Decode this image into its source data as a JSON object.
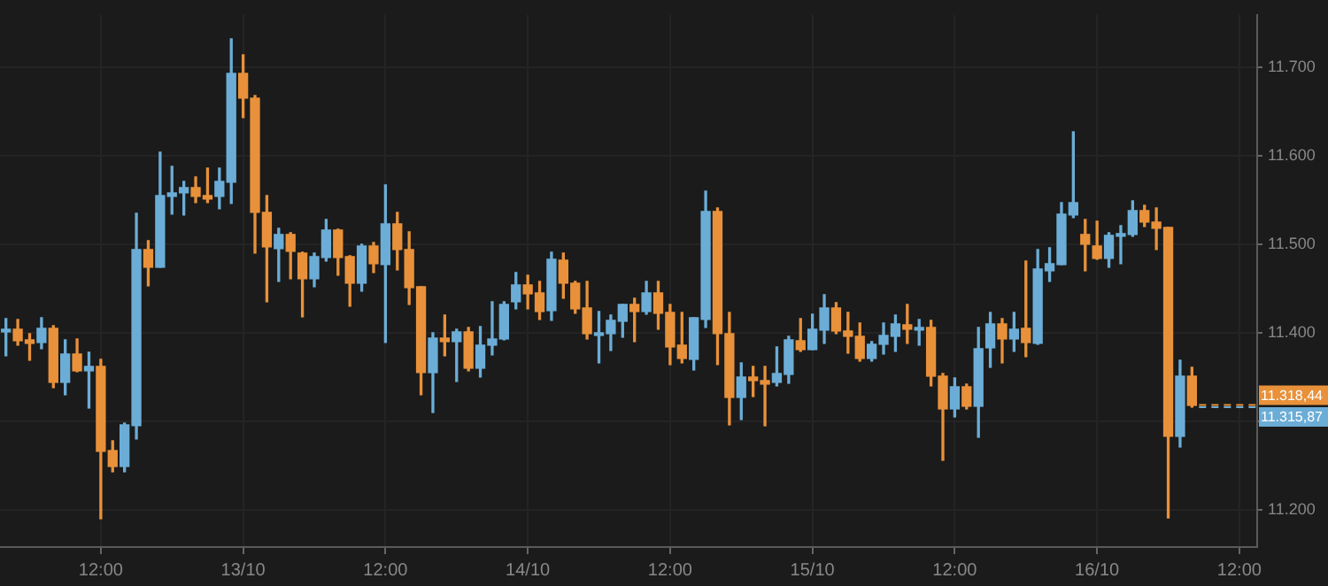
{
  "chart_data": {
    "type": "candlestick",
    "categories": [
      null,
      null,
      null,
      null,
      null,
      null,
      null,
      null,
      "12:00",
      null,
      null,
      null,
      null,
      null,
      null,
      null,
      null,
      null,
      null,
      null,
      "13/10",
      null,
      null,
      null,
      null,
      null,
      null,
      null,
      null,
      null,
      null,
      null,
      "12:00",
      null,
      null,
      null,
      null,
      null,
      null,
      null,
      null,
      null,
      null,
      null,
      "14/10",
      null,
      null,
      null,
      null,
      null,
      null,
      null,
      null,
      null,
      null,
      null,
      "12:00",
      null,
      null,
      null,
      null,
      null,
      null,
      null,
      null,
      null,
      null,
      null,
      "15/10",
      null,
      null,
      null,
      null,
      null,
      null,
      null,
      null,
      null,
      null,
      null,
      "12:00",
      null,
      null,
      null,
      null,
      null,
      null,
      null,
      null,
      null,
      null,
      null,
      "16/10",
      null,
      null,
      null,
      null,
      null,
      null,
      null,
      null,
      null,
      null,
      null,
      "12:00",
      null
    ],
    "ohlc": [
      [
        11401,
        11416,
        11374,
        11404
      ],
      [
        11404,
        11415,
        11386,
        11391
      ],
      [
        11392,
        11399,
        11369,
        11388
      ],
      [
        11389,
        11417,
        11382,
        11405
      ],
      [
        11405,
        11408,
        11338,
        11344
      ],
      [
        11344,
        11392,
        11330,
        11376
      ],
      [
        11376,
        11393,
        11356,
        11357
      ],
      [
        11357,
        11378,
        11315,
        11362
      ],
      [
        11362,
        11370,
        11190,
        11266
      ],
      [
        11267,
        11278,
        11243,
        11249
      ],
      [
        11249,
        11298,
        11243,
        11296
      ],
      [
        11295,
        11535,
        11280,
        11494
      ],
      [
        11494,
        11504,
        11453,
        11474
      ],
      [
        11474,
        11604,
        11474,
        11555
      ],
      [
        11554,
        11588,
        11534,
        11558
      ],
      [
        11558,
        11571,
        11533,
        11564
      ],
      [
        11564,
        11576,
        11547,
        11554
      ],
      [
        11555,
        11586,
        11547,
        11551
      ],
      [
        11554,
        11586,
        11540,
        11571
      ],
      [
        11570,
        11732,
        11546,
        11693
      ],
      [
        11693,
        11714,
        11643,
        11665
      ],
      [
        11665,
        11668,
        11490,
        11536
      ],
      [
        11536,
        11555,
        11435,
        11497
      ],
      [
        11495,
        11518,
        11458,
        11511
      ],
      [
        11511,
        11513,
        11461,
        11492
      ],
      [
        11490,
        11491,
        11418,
        11461
      ],
      [
        11461,
        11490,
        11452,
        11486
      ],
      [
        11485,
        11528,
        11481,
        11516
      ],
      [
        11516,
        11517,
        11465,
        11485
      ],
      [
        11486,
        11487,
        11430,
        11456
      ],
      [
        11456,
        11500,
        11447,
        11498
      ],
      [
        11498,
        11502,
        11468,
        11478
      ],
      [
        11477,
        11567,
        11389,
        11523
      ],
      [
        11523,
        11536,
        11471,
        11494
      ],
      [
        11494,
        11514,
        11432,
        11451
      ],
      [
        11452,
        11452,
        11330,
        11355
      ],
      [
        11355,
        11400,
        11310,
        11394
      ],
      [
        11394,
        11420,
        11374,
        11390
      ],
      [
        11390,
        11404,
        11345,
        11401
      ],
      [
        11401,
        11406,
        11357,
        11360
      ],
      [
        11360,
        11407,
        11350,
        11386
      ],
      [
        11386,
        11435,
        11375,
        11393
      ],
      [
        11393,
        11435,
        11392,
        11432
      ],
      [
        11435,
        11468,
        11427,
        11454
      ],
      [
        11454,
        11465,
        11427,
        11444
      ],
      [
        11445,
        11458,
        11415,
        11424
      ],
      [
        11425,
        11491,
        11414,
        11483
      ],
      [
        11482,
        11490,
        11439,
        11456
      ],
      [
        11456,
        11458,
        11422,
        11427
      ],
      [
        11428,
        11458,
        11393,
        11399
      ],
      [
        11397,
        11424,
        11366,
        11400
      ],
      [
        11399,
        11420,
        11380,
        11414
      ],
      [
        11413,
        11432,
        11395,
        11432
      ],
      [
        11432,
        11439,
        11390,
        11424
      ],
      [
        11424,
        11458,
        11421,
        11445
      ],
      [
        11445,
        11458,
        11404,
        11422
      ],
      [
        11423,
        11432,
        11364,
        11384
      ],
      [
        11386,
        11423,
        11366,
        11371
      ],
      [
        11370,
        11417,
        11358,
        11417
      ],
      [
        11415,
        11560,
        11406,
        11537
      ],
      [
        11537,
        11541,
        11364,
        11399
      ],
      [
        11399,
        11423,
        11296,
        11327
      ],
      [
        11327,
        11366,
        11302,
        11350
      ],
      [
        11350,
        11362,
        11328,
        11346
      ],
      [
        11346,
        11362,
        11295,
        11342
      ],
      [
        11344,
        11384,
        11340,
        11354
      ],
      [
        11353,
        11396,
        11343,
        11392
      ],
      [
        11391,
        11416,
        11379,
        11381
      ],
      [
        11381,
        11421,
        11381,
        11404
      ],
      [
        11403,
        11443,
        11388,
        11428
      ],
      [
        11428,
        11434,
        11399,
        11402
      ],
      [
        11402,
        11423,
        11377,
        11396
      ],
      [
        11396,
        11411,
        11368,
        11371
      ],
      [
        11371,
        11390,
        11368,
        11387
      ],
      [
        11387,
        11411,
        11376,
        11397
      ],
      [
        11396,
        11420,
        11379,
        11410
      ],
      [
        11409,
        11432,
        11388,
        11404
      ],
      [
        11403,
        11415,
        11386,
        11406
      ],
      [
        11406,
        11414,
        11340,
        11351
      ],
      [
        11351,
        11354,
        11256,
        11314
      ],
      [
        11314,
        11349,
        11305,
        11339
      ],
      [
        11339,
        11342,
        11314,
        11317
      ],
      [
        11317,
        11406,
        11282,
        11382
      ],
      [
        11383,
        11423,
        11361,
        11410
      ],
      [
        11410,
        11416,
        11366,
        11393
      ],
      [
        11393,
        11423,
        11379,
        11404
      ],
      [
        11405,
        11481,
        11373,
        11389
      ],
      [
        11388,
        11494,
        11387,
        11472
      ],
      [
        11470,
        11496,
        11458,
        11478
      ],
      [
        11477,
        11547,
        11477,
        11534
      ],
      [
        11533,
        11627,
        11530,
        11547
      ],
      [
        11511,
        11528,
        11470,
        11500
      ],
      [
        11498,
        11526,
        11483,
        11484
      ],
      [
        11484,
        11513,
        11474,
        11510
      ],
      [
        11509,
        11521,
        11478,
        11512
      ],
      [
        11511,
        11549,
        11509,
        11538
      ],
      [
        11538,
        11544,
        11520,
        11525
      ],
      [
        11525,
        11541,
        11494,
        11518
      ],
      [
        11519,
        11519,
        11191,
        11283
      ],
      [
        11283,
        11369,
        11271,
        11351
      ],
      [
        11351,
        11361,
        11316,
        11318
      ],
      null,
      null,
      null,
      null,
      null
    ],
    "colors": [
      "#6badd6",
      "#e8913a",
      "#e8913a",
      "#6badd6",
      "#e8913a",
      "#6badd6",
      "#e8913a",
      "#6badd6",
      "#e8913a",
      "#e8913a",
      "#6badd6",
      "#6badd6",
      "#e8913a",
      "#6badd6",
      "#6badd6",
      "#6badd6",
      "#e8913a",
      "#e8913a",
      "#6badd6",
      "#6badd6",
      "#e8913a",
      "#e8913a",
      "#e8913a",
      "#6badd6",
      "#e8913a",
      "#e8913a",
      "#6badd6",
      "#6badd6",
      "#e8913a",
      "#e8913a",
      "#6badd6",
      "#e8913a",
      "#6badd6",
      "#e8913a",
      "#e8913a",
      "#e8913a",
      "#6badd6",
      "#e8913a",
      "#6badd6",
      "#e8913a",
      "#6badd6",
      "#6badd6",
      "#6badd6",
      "#6badd6",
      "#e8913a",
      "#e8913a",
      "#6badd6",
      "#e8913a",
      "#e8913a",
      "#e8913a",
      "#6badd6",
      "#6badd6",
      "#6badd6",
      "#e8913a",
      "#6badd6",
      "#e8913a",
      "#e8913a",
      "#e8913a",
      "#6badd6",
      "#6badd6",
      "#e8913a",
      "#e8913a",
      "#6badd6",
      "#e8913a",
      "#e8913a",
      "#6badd6",
      "#6badd6",
      "#e8913a",
      "#6badd6",
      "#6badd6",
      "#e8913a",
      "#e8913a",
      "#e8913a",
      "#6badd6",
      "#6badd6",
      "#6badd6",
      "#e8913a",
      "#6badd6",
      "#e8913a",
      "#e8913a",
      "#6badd6",
      "#e8913a",
      "#6badd6",
      "#6badd6",
      "#e8913a",
      "#6badd6",
      "#e8913a",
      "#6badd6",
      "#6badd6",
      "#6badd6",
      "#6badd6",
      "#e8913a",
      "#e8913a",
      "#6badd6",
      "#6badd6",
      "#6badd6",
      "#e8913a",
      "#e8913a",
      "#e8913a",
      "#6badd6",
      "#e8913a",
      null,
      null,
      null,
      null,
      null
    ],
    "ylim": [
      11158,
      11759
    ],
    "yticks": [
      {
        "value": 11200,
        "label": "11.200"
      },
      {
        "value": 11300,
        "label": null
      },
      {
        "value": 11400,
        "label": "11.400"
      },
      {
        "value": 11500,
        "label": "11.500"
      },
      {
        "value": 11600,
        "label": "11.600"
      },
      {
        "value": 11700,
        "label": "11.700"
      }
    ],
    "ref_lines": [
      {
        "axis": "y",
        "value": 11318.44,
        "label": "11.318,44",
        "color": "#e8913a",
        "line_style": "dashed"
      },
      {
        "axis": "y",
        "value": 11315.87,
        "label": "11.315,87",
        "color": "#6badd6",
        "line_style": "dashed"
      }
    ],
    "grid": true,
    "legend": false
  }
}
